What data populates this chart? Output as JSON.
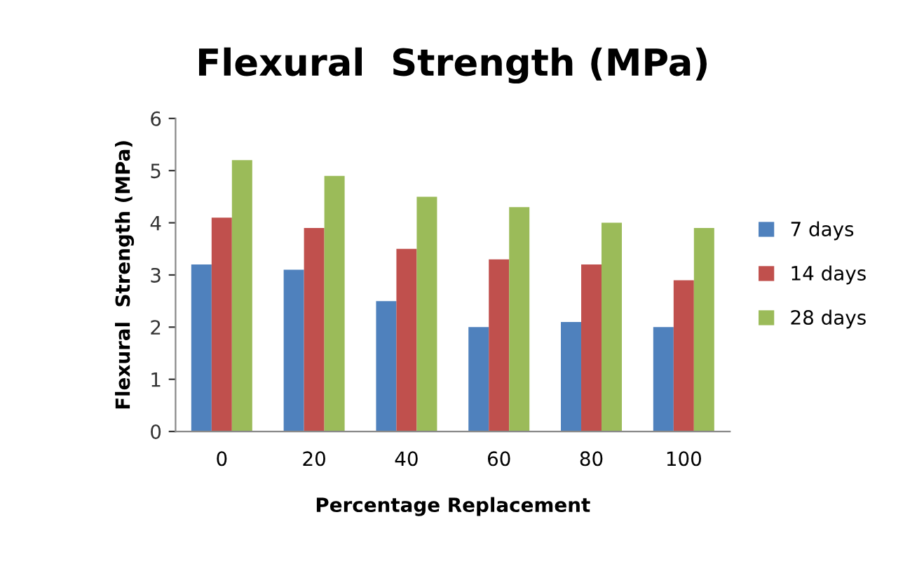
{
  "chart_data": {
    "type": "bar",
    "title": "Flexural  Strength (MPa)",
    "xlabel": "Percentage Replacement",
    "ylabel": "Flexural  Strength (MPa)",
    "categories": [
      "0",
      "20",
      "40",
      "60",
      "80",
      "100"
    ],
    "series": [
      {
        "name": "7 days",
        "color": "#4f81bd",
        "values": [
          3.2,
          3.1,
          2.5,
          2.0,
          2.1,
          2.0
        ]
      },
      {
        "name": "14 days",
        "color": "#c0504d",
        "values": [
          4.1,
          3.9,
          3.5,
          3.3,
          3.2,
          2.9
        ]
      },
      {
        "name": "28 days",
        "color": "#9bbb59",
        "values": [
          5.2,
          4.9,
          4.5,
          4.3,
          4.0,
          3.9
        ]
      }
    ],
    "ylim": [
      0,
      6
    ],
    "yticks": [
      0,
      1,
      2,
      3,
      4,
      5,
      6
    ],
    "grid": false,
    "legend": "right"
  }
}
